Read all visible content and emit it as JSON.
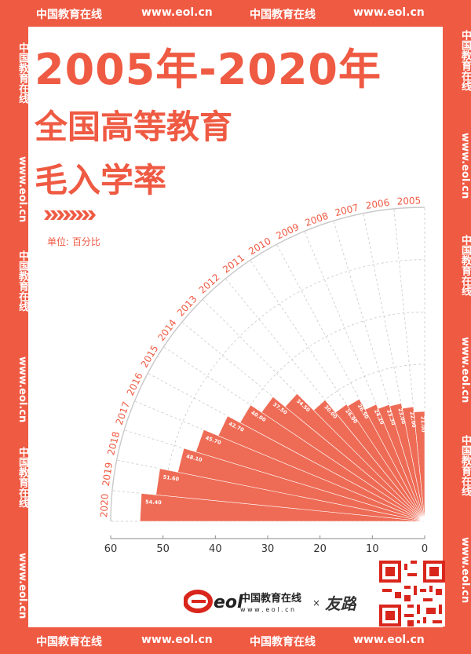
{
  "frame": {
    "brand_cn": "中国教育在线",
    "brand_url": "www.eol.cn"
  },
  "title": {
    "line1": "2005年-2020年",
    "line2": "全国高等教育",
    "line3": "毛入学率"
  },
  "unit_label": "单位: 百分比",
  "colors": {
    "accent": "#ef5a43",
    "bar_fill": "#ee6b55",
    "grid": "#c9c9c9"
  },
  "chart_data": {
    "type": "bar",
    "layout": "radial-quarter",
    "categories": [
      "2020",
      "2019",
      "2018",
      "2017",
      "2016",
      "2015",
      "2014",
      "2013",
      "2012",
      "2011",
      "2010",
      "2009",
      "2008",
      "2007",
      "2006",
      "2005"
    ],
    "values": [
      54.4,
      51.6,
      48.1,
      45.7,
      42.7,
      40.0,
      37.5,
      34.5,
      30.0,
      26.9,
      26.5,
      24.2,
      23.3,
      23.0,
      22.0,
      21.0
    ],
    "value_labels": [
      "54.40",
      "51.60",
      "48.10",
      "45.70",
      "42.70",
      "40.00",
      "37.50",
      "34.50",
      "30.00",
      "26.90",
      "26.50",
      "24.20",
      "23.30",
      "23.00",
      "22.00",
      "21.00"
    ],
    "axis_ticks": [
      "60",
      "50",
      "40",
      "30",
      "20",
      "10",
      "0"
    ],
    "axis_range": [
      0,
      60
    ],
    "grid": true
  },
  "footer": {
    "logo_text": "eol",
    "logo_cn": "中国教育在线",
    "logo_url": "w w w . e o l . c n",
    "times": "×",
    "partner": "友路"
  }
}
